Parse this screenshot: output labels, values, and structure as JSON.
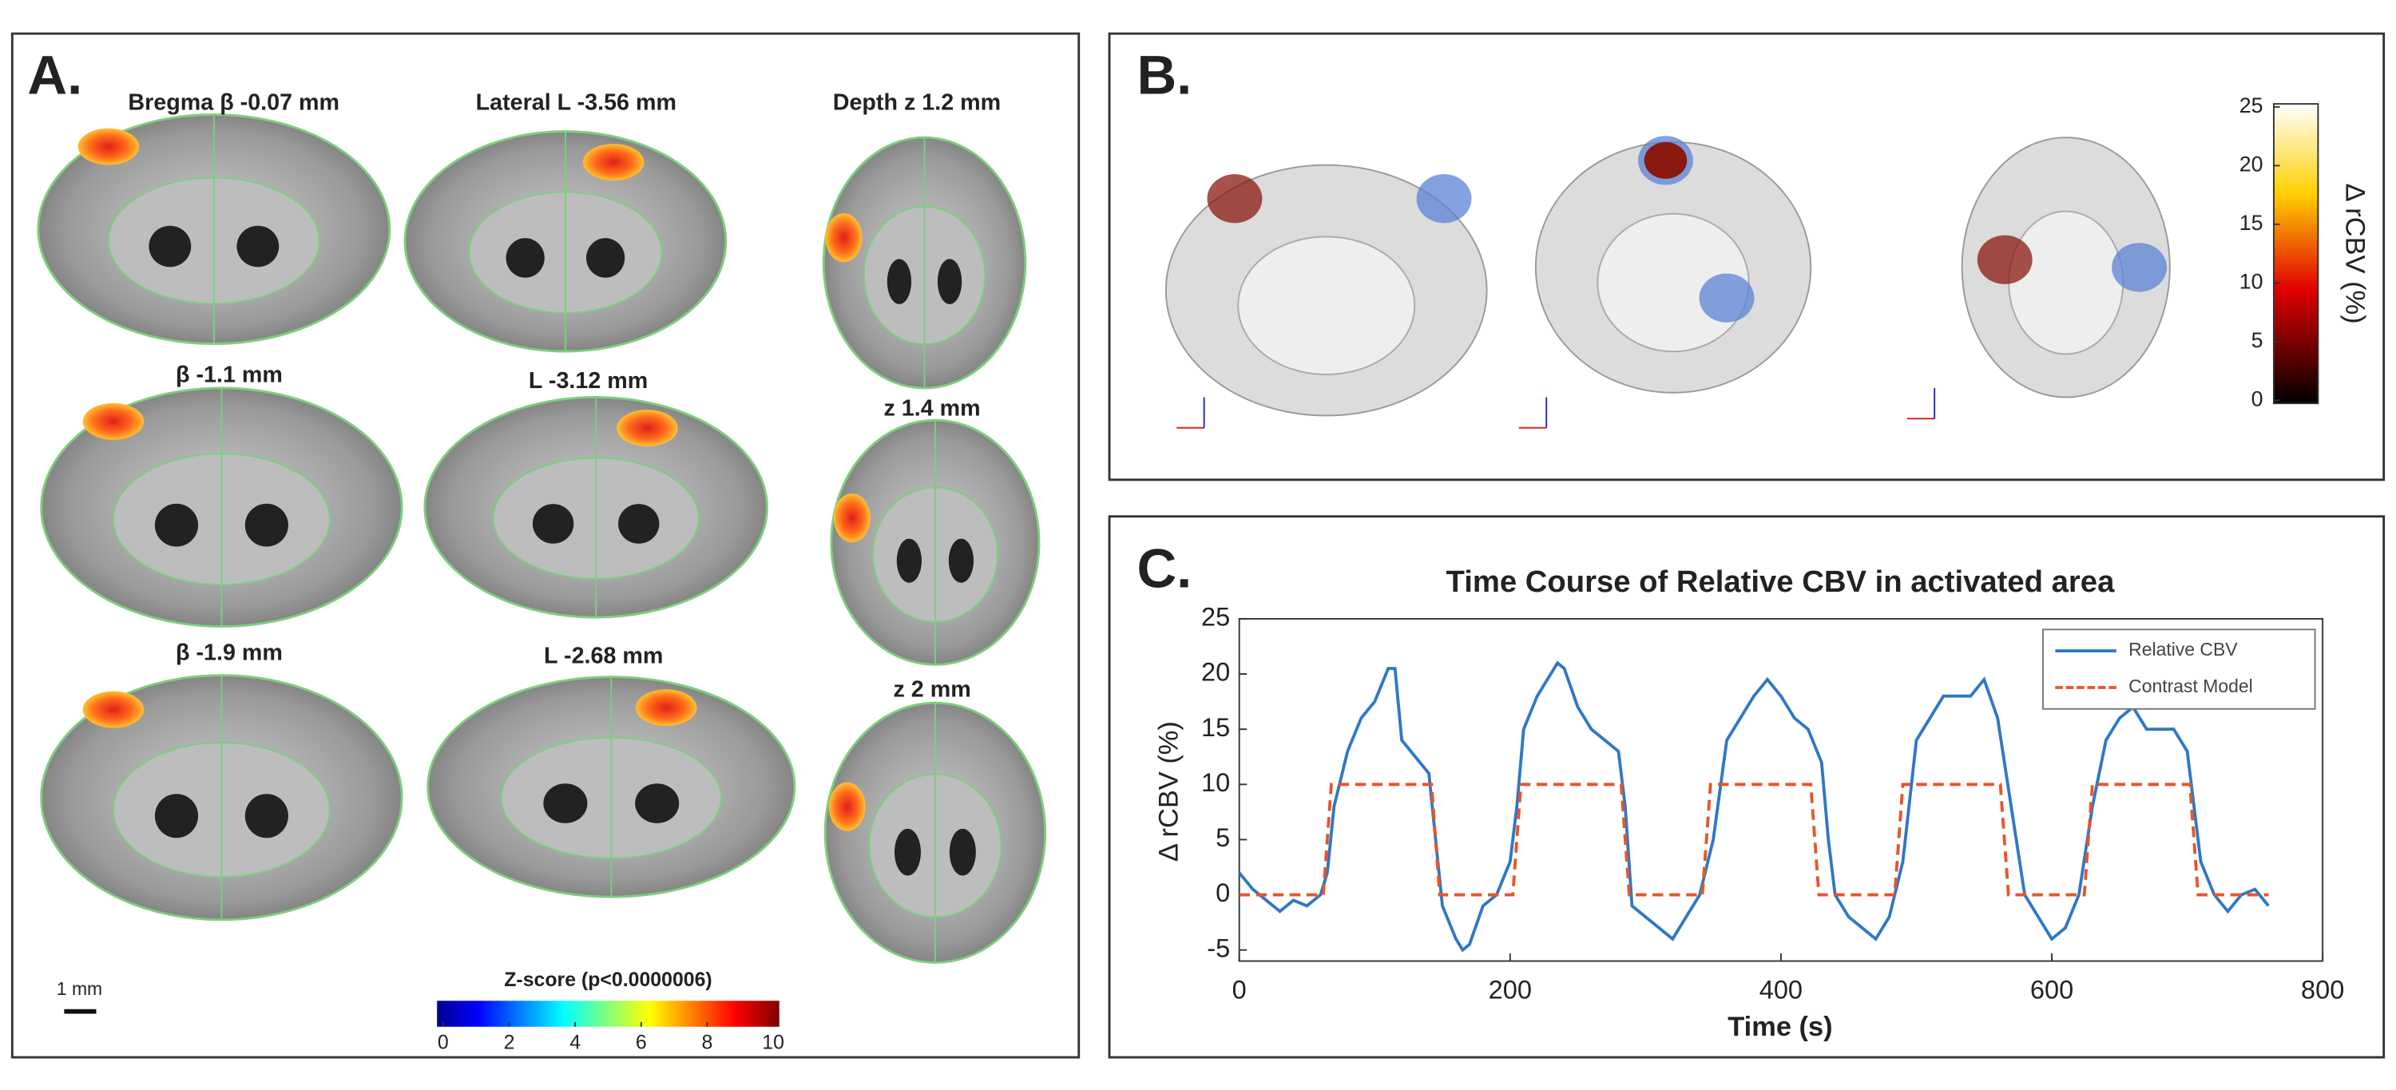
{
  "panel_a": {
    "label": "A.",
    "slices": [
      [
        "Bregma β -0.07 mm",
        "Lateral L -3.56 mm",
        "Depth z 1.2 mm"
      ],
      [
        "β -1.1 mm",
        "L -3.12 mm",
        "z 1.4 mm"
      ],
      [
        "β -1.9 mm",
        "L -2.68 mm",
        "z 2 mm"
      ]
    ],
    "scale_bar": "1 mm",
    "colorbar": {
      "title": "Z-score (p<0.0000006)",
      "ticks": [
        0,
        2,
        4,
        6,
        8,
        10
      ]
    }
  },
  "panel_b": {
    "label": "B.",
    "colorbar": {
      "label": "Δ rCBV (%)",
      "ticks": [
        0,
        5,
        10,
        15,
        20,
        25
      ]
    }
  },
  "panel_c": {
    "label": "C."
  },
  "chart_data": {
    "type": "line",
    "title": "Time Course of Relative CBV in activated area",
    "x_label": "Time (s)",
    "y_label": "Δ rCBV (%)",
    "xlim": [
      0,
      800
    ],
    "xticks": [
      0,
      200,
      400,
      600,
      800
    ],
    "ylim": [
      -6,
      25
    ],
    "yticks": [
      -5,
      0,
      5,
      10,
      15,
      20,
      25
    ],
    "legend": "upper right",
    "series": [
      {
        "name": "Relative CBV",
        "color": "#2f78c4",
        "dash": false,
        "x": [
          0,
          10,
          20,
          30,
          40,
          50,
          60,
          65,
          70,
          80,
          90,
          100,
          105,
          110,
          115,
          120,
          130,
          140,
          145,
          150,
          160,
          165,
          170,
          180,
          190,
          200,
          205,
          210,
          220,
          230,
          235,
          240,
          250,
          260,
          270,
          280,
          285,
          290,
          300,
          310,
          320,
          330,
          340,
          350,
          360,
          370,
          380,
          390,
          400,
          410,
          420,
          430,
          435,
          440,
          450,
          460,
          470,
          480,
          490,
          500,
          510,
          520,
          530,
          540,
          550,
          560,
          570,
          580,
          590,
          600,
          610,
          620,
          630,
          640,
          650,
          660,
          670,
          680,
          690,
          700,
          710,
          720,
          730,
          740,
          750,
          760
        ],
        "values": [
          2,
          0.5,
          -0.5,
          -1.5,
          -0.5,
          -1,
          0,
          2,
          8,
          13,
          16,
          17.5,
          19,
          20.5,
          20.5,
          14,
          12.5,
          11,
          5,
          -1,
          -4,
          -5,
          -4.5,
          -1,
          0,
          3,
          8,
          15,
          18,
          20,
          21,
          20.5,
          17,
          15,
          14,
          13,
          8,
          -1,
          -2,
          -3,
          -4,
          -2,
          0,
          5,
          14,
          16,
          18,
          19.5,
          18,
          16,
          15,
          12,
          5,
          0,
          -2,
          -3,
          -4,
          -2,
          3,
          14,
          16,
          18,
          18,
          18,
          19.5,
          16,
          8,
          0,
          -2,
          -4,
          -3,
          0,
          8,
          14,
          16,
          17,
          15,
          15,
          15,
          13,
          3,
          0,
          -1.5,
          0,
          0.5,
          -1
        ]
      },
      {
        "name": "Contrast Model",
        "color": "#e8542a",
        "dash": true,
        "x": [
          0,
          62,
          68,
          142,
          148,
          202,
          208,
          282,
          288,
          342,
          348,
          422,
          428,
          484,
          490,
          562,
          568,
          624,
          630,
          702,
          708,
          760
        ],
        "values": [
          0,
          0,
          10,
          10,
          0,
          0,
          10,
          10,
          0,
          0,
          10,
          10,
          0,
          0,
          10,
          10,
          0,
          0,
          10,
          10,
          0,
          0
        ]
      }
    ]
  }
}
